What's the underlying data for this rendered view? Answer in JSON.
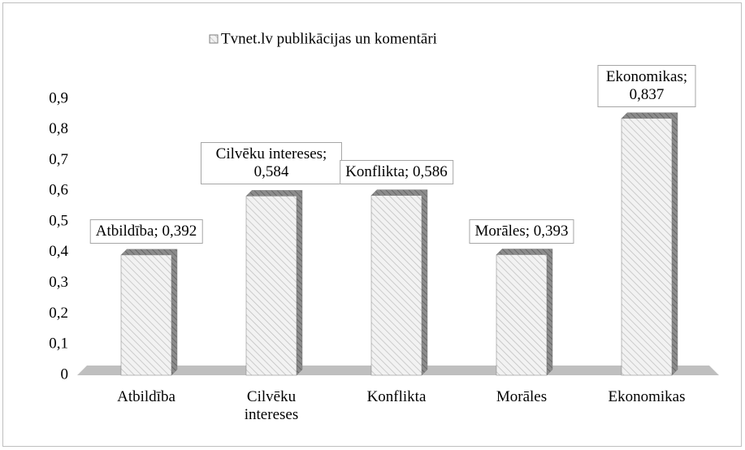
{
  "chart_data": {
    "type": "bar3d",
    "categories": [
      "Atbildība",
      "Cilvēku intereses",
      "Konflikta",
      "Morāles",
      "Ekonomikas"
    ],
    "series": [
      {
        "name": "Tvnet.lv publikācijas un komentāri",
        "color": "#d9d9d9",
        "values": [
          0.392,
          0.584,
          0.586,
          0.393,
          0.837
        ],
        "value_labels": [
          "Atbildība; 0,392",
          "Cilvēku intereses; 0,584",
          "Konflikta; 0,586",
          "Morāles; 0,393",
          "Ekonomikas; 0,837"
        ]
      }
    ],
    "ylim": [
      0,
      0.9
    ],
    "yticks": [
      0,
      {
        "value": 0.1,
        "label": "0,1"
      },
      {
        "value": 0.2,
        "label": "0,2"
      },
      {
        "value": 0.3,
        "label": "0,3"
      },
      {
        "value": 0.4,
        "label": "0,4"
      },
      {
        "value": 0.5,
        "label": "0,5"
      },
      {
        "value": 0.6,
        "label": "0,6"
      },
      {
        "value": 0.7,
        "label": "0,7"
      },
      {
        "value": 0.8,
        "label": "0,8"
      },
      {
        "value": 0.9,
        "label": "0,9"
      }
    ],
    "legend": "top",
    "grid": false
  }
}
